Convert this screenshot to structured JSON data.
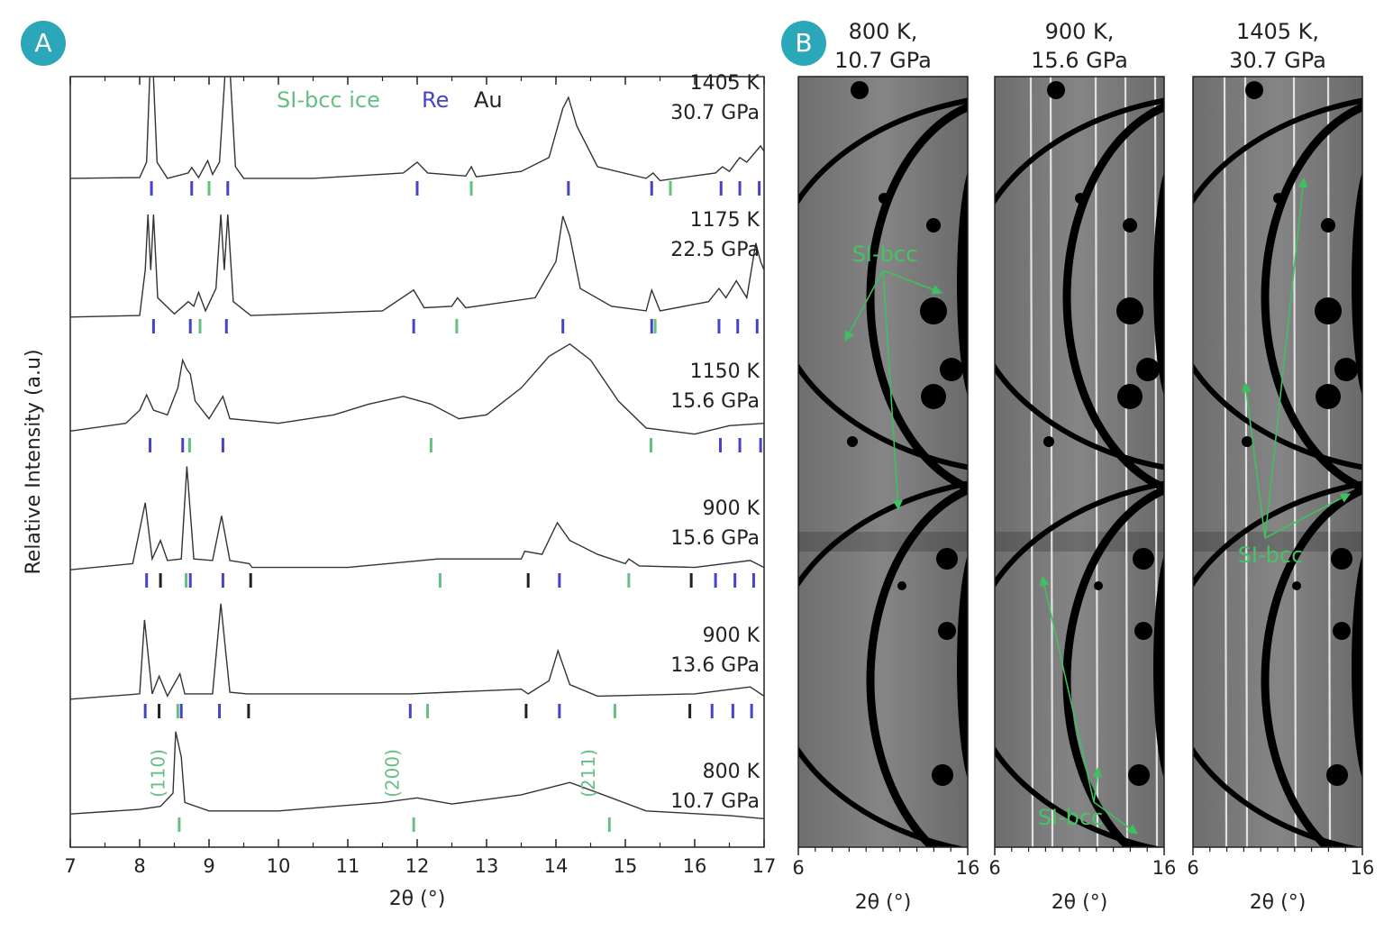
{
  "chart_data": [
    {
      "type": "line",
      "panel": "A",
      "xlabel": "2θ (°)",
      "ylabel": "Relative Intensity (a.u)",
      "xlim": [
        7,
        17
      ],
      "xticks": [
        7,
        8,
        9,
        10,
        11,
        12,
        13,
        14,
        15,
        16,
        17
      ],
      "xminor": [
        7.5,
        8.5,
        9.5,
        10.5,
        11.5,
        12.5,
        13.5,
        14.5,
        15.5,
        16.5
      ],
      "ylim": [
        0,
        100
      ],
      "legend": [
        {
          "name": "SI-bcc ice",
          "color": "#66bf82"
        },
        {
          "name": "Re",
          "color": "#4444c8"
        },
        {
          "name": "Au",
          "color": "#222222"
        }
      ],
      "series": [
        {
          "temperature": "1405 K",
          "pressure": "30.7 GPa",
          "color": "#333333",
          "x": [
            7,
            8.0,
            8.1,
            8.17,
            8.25,
            8.4,
            8.7,
            8.75,
            8.85,
            8.98,
            9.05,
            9.15,
            9.27,
            9.38,
            9.5,
            10.5,
            11.8,
            12.0,
            12.15,
            12.7,
            12.78,
            12.85,
            13.5,
            13.9,
            14.1,
            14.18,
            14.3,
            14.6,
            15.3,
            15.4,
            15.5,
            16.3,
            16.4,
            16.5,
            16.65,
            16.75,
            16.95,
            17
          ],
          "values": [
            86.8,
            86.9,
            88.9,
            106,
            88.9,
            86.8,
            87.5,
            88.2,
            86.9,
            89.1,
            87.3,
            88.9,
            106,
            88.3,
            86.8,
            86.8,
            87.5,
            88.9,
            87.5,
            87.1,
            88.3,
            87.0,
            87.7,
            89.5,
            95.9,
            97.3,
            93.6,
            88.3,
            86.8,
            87.5,
            86.5,
            87.5,
            88.3,
            87.7,
            89.5,
            88.9,
            91.0,
            90.3
          ],
          "re": [
            8.17,
            8.75,
            9.27,
            12.0,
            14.18,
            15.38,
            16.38,
            16.65,
            16.93
          ],
          "ice": [
            9.0,
            12.78,
            15.65
          ]
        },
        {
          "temperature": "1175 K",
          "pressure": "22.5 GPa",
          "color": "#333333",
          "x": [
            7,
            8.0,
            8.08,
            8.12,
            8.16,
            8.2,
            8.26,
            8.5,
            8.7,
            8.78,
            8.85,
            8.95,
            9.1,
            9.17,
            9.22,
            9.27,
            9.35,
            9.6,
            11.5,
            11.95,
            12.1,
            12.5,
            12.58,
            12.7,
            13.7,
            14.0,
            14.1,
            14.2,
            14.35,
            14.8,
            15.3,
            15.38,
            15.5,
            16.2,
            16.35,
            16.45,
            16.6,
            16.75,
            16.88,
            16.95,
            17
          ],
          "values": [
            68.8,
            69.0,
            74.9,
            82.1,
            74.9,
            82.1,
            71.3,
            69.2,
            70.8,
            70.2,
            72.0,
            69.6,
            72.5,
            82.1,
            74.9,
            82.1,
            70.8,
            69.0,
            69.6,
            72.3,
            70.0,
            70.2,
            71.3,
            70.0,
            71.3,
            76.0,
            81.9,
            79.3,
            72.5,
            70.2,
            69.6,
            72.3,
            69.6,
            70.8,
            72.5,
            71.3,
            73.5,
            71.3,
            78.4,
            76.0,
            74.9
          ],
          "re": [
            8.2,
            8.73,
            9.25,
            11.95,
            14.1,
            15.38,
            16.35,
            16.62,
            16.9
          ],
          "ice": [
            8.87,
            12.57,
            15.43
          ]
        },
        {
          "temperature": "1150 K",
          "pressure": "15.6 GPa",
          "color": "#333333",
          "x": [
            7,
            7.8,
            8.0,
            8.1,
            8.2,
            8.4,
            8.55,
            8.62,
            8.68,
            8.73,
            8.8,
            9.0,
            9.2,
            9.3,
            10.0,
            10.8,
            11.3,
            11.8,
            12.2,
            12.6,
            13.0,
            13.5,
            13.9,
            14.2,
            14.5,
            14.9,
            15.3,
            16.0,
            16.5,
            17
          ],
          "values": [
            54.0,
            55.0,
            56.7,
            58.7,
            56.7,
            56.1,
            59.6,
            63.2,
            62.0,
            61.4,
            57.9,
            55.6,
            58.5,
            55.6,
            55.0,
            56.1,
            57.5,
            58.5,
            57.5,
            55.6,
            56.1,
            59.6,
            63.7,
            65.3,
            63.2,
            57.9,
            54.4,
            53.6,
            54.7,
            55.0
          ],
          "re": [
            8.15,
            8.62,
            9.2,
            16.37,
            16.65,
            16.95
          ],
          "ice": [
            8.72,
            12.2,
            15.37
          ]
        },
        {
          "temperature": "900 K",
          "pressure": "15.6 GPa",
          "color": "#333333",
          "x": [
            7,
            7.9,
            8.08,
            8.18,
            8.3,
            8.4,
            8.6,
            8.68,
            8.78,
            9.05,
            9.18,
            9.3,
            9.58,
            9.62,
            11,
            12.3,
            13.5,
            13.55,
            13.8,
            14.02,
            14.2,
            14.6,
            15.0,
            15.05,
            15.2,
            16,
            16.8,
            17
          ],
          "values": [
            36.0,
            36.8,
            44.7,
            37.4,
            39.8,
            37.2,
            37.4,
            49.4,
            37.4,
            37.2,
            43.0,
            37.2,
            36.8,
            36.3,
            36.3,
            37.4,
            37.4,
            38.4,
            38.0,
            42.1,
            39.8,
            38.0,
            36.8,
            37.4,
            36.5,
            36.3,
            37.2,
            36.3
          ],
          "re": [
            8.1,
            8.73,
            9.2,
            14.05,
            16.3,
            16.58,
            16.85
          ],
          "au": [
            8.3,
            9.6,
            13.6,
            15.95
          ],
          "ice": [
            8.67,
            12.33,
            15.05
          ]
        },
        {
          "temperature": "900 K",
          "pressure": "13.6 GPa",
          "color": "#333333",
          "x": [
            7,
            8.0,
            8.07,
            8.18,
            8.28,
            8.4,
            8.58,
            8.65,
            9.05,
            9.17,
            9.3,
            9.55,
            11.9,
            13.5,
            13.6,
            13.9,
            14.03,
            14.2,
            14.6,
            16,
            16.8,
            17
          ],
          "values": [
            19.2,
            19.9,
            29.5,
            19.9,
            22.2,
            19.6,
            22.5,
            19.9,
            19.9,
            31.6,
            20.1,
            19.9,
            19.9,
            20.5,
            19.9,
            21.6,
            25.5,
            21.1,
            19.6,
            19.9,
            20.8,
            19.6
          ],
          "re": [
            8.08,
            8.6,
            9.15,
            11.9,
            14.05,
            16.25,
            16.55,
            16.82
          ],
          "au": [
            8.28,
            9.57,
            13.57,
            15.93
          ],
          "ice": [
            8.55,
            12.15,
            14.85
          ]
        },
        {
          "temperature": "800 K",
          "pressure": "10.7 GPa",
          "color": "#333333",
          "x": [
            7,
            8.0,
            8.3,
            8.48,
            8.52,
            8.6,
            8.65,
            9.0,
            10.0,
            11.5,
            12.0,
            12.5,
            13.5,
            14.2,
            14.8,
            15.3,
            16.5,
            17
          ],
          "values": [
            4.3,
            4.9,
            5.3,
            7.0,
            15.0,
            11.7,
            5.8,
            4.7,
            4.7,
            5.8,
            6.4,
            5.6,
            6.8,
            8.4,
            6.4,
            4.7,
            4.1,
            3.7
          ],
          "ice": [
            8.57,
            11.95,
            14.77
          ],
          "ice_labels": [
            "(110)",
            "(200)",
            "(211)"
          ]
        }
      ]
    },
    {
      "type": "image",
      "panel": "B",
      "xlabel": "2θ (°)",
      "xlim": [
        6,
        16
      ],
      "xticks": [
        6,
        16
      ],
      "xminor": [
        7,
        8,
        9,
        10,
        11,
        12,
        13,
        14,
        15
      ],
      "images": [
        {
          "title": [
            "800 K,",
            "10.7 GPa"
          ],
          "annotation": "SI-bcc"
        },
        {
          "title": [
            "900 K,",
            "15.6 GPa"
          ],
          "annotation": "SI-bcc"
        },
        {
          "title": [
            "1405 K,",
            "30.7 GPa"
          ],
          "annotation": "SI-bcc"
        }
      ]
    }
  ]
}
